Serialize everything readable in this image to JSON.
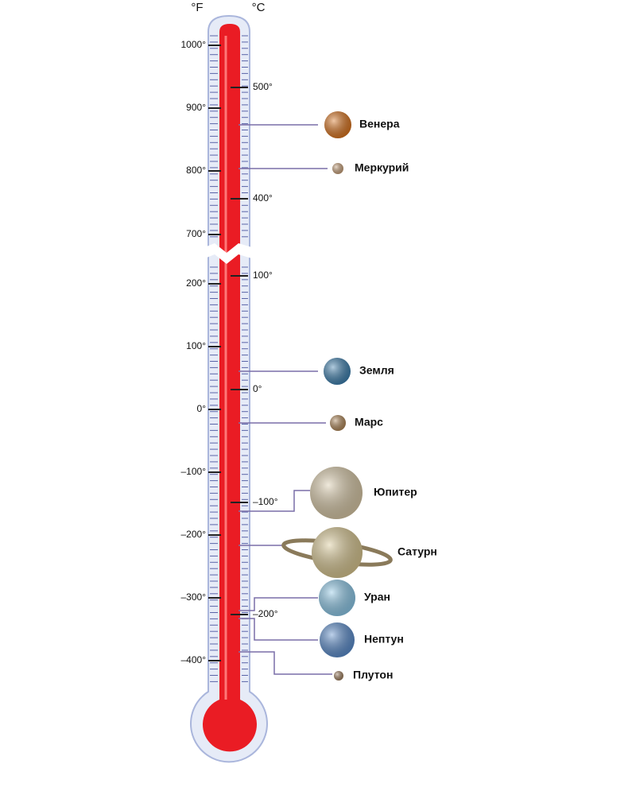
{
  "units": {
    "fahrenheit": "°F",
    "celsius": "°C"
  },
  "fahrenheit_ticks": [
    "1000°",
    "900°",
    "800°",
    "700°",
    "200°",
    "100°",
    "0°",
    "–100°",
    "–200°",
    "–300°",
    "–400°"
  ],
  "celsius_ticks": [
    "500°",
    "400°",
    "100°",
    "0°",
    "–100°",
    "–200°"
  ],
  "planets": [
    {
      "label": "Венера"
    },
    {
      "label": "Меркурий"
    },
    {
      "label": "Земля"
    },
    {
      "label": "Марс"
    },
    {
      "label": "Юпитер"
    },
    {
      "label": "Сатурн"
    },
    {
      "label": "Уран"
    },
    {
      "label": "Нептун"
    },
    {
      "label": "Плутон"
    }
  ]
}
